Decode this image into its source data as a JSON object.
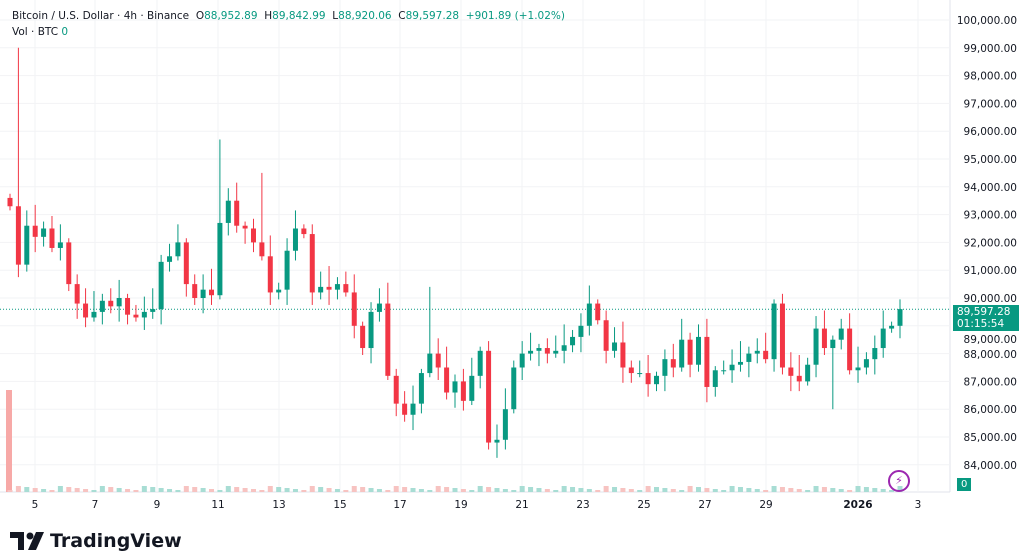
{
  "header": {
    "symbol": "Bitcoin / U.S. Dollar · 4h · Binance",
    "o_label": "O",
    "o": "88,952.89",
    "h_label": "H",
    "h": "89,842.99",
    "l_label": "L",
    "l": "88,920.06",
    "c_label": "C",
    "c": "89,597.28",
    "change": "+901.89 (+1.02%)",
    "vol_label": "Vol · BTC",
    "vol": "0"
  },
  "price_badge": {
    "price": "89,597.28",
    "countdown": "01:15:54"
  },
  "vol_badge": "0",
  "logo": "TradingView",
  "colors": {
    "up": "#089981",
    "down": "#f23645"
  },
  "chart_data": {
    "type": "candlestick",
    "ylim": [
      83000,
      100500
    ],
    "yticks": [
      "100,000.00",
      "99,000.00",
      "98,000.00",
      "97,000.00",
      "96,000.00",
      "95,000.00",
      "94,000.00",
      "93,000.00",
      "92,000.00",
      "91,000.00",
      "90,000.00",
      "89,000.00",
      "88,000.00",
      "87,000.00",
      "86,000.00",
      "85,000.00",
      "84,000.00"
    ],
    "xticks": [
      "5",
      "7",
      "9",
      "11",
      "13",
      "15",
      "17",
      "19",
      "21",
      "23",
      "25",
      "27",
      "29",
      "2026",
      "3"
    ],
    "closes": [
      93.3,
      91.2,
      92.6,
      92.2,
      92.5,
      91.8,
      92.0,
      90.5,
      89.8,
      89.3,
      89.5,
      89.9,
      89.7,
      90.0,
      89.4,
      89.3,
      89.5,
      89.6,
      91.3,
      91.5,
      92.0,
      90.5,
      90.0,
      90.3,
      90.1,
      92.7,
      93.5,
      92.6,
      92.5,
      92.0,
      91.5,
      90.2,
      90.3,
      91.7,
      92.5,
      92.3,
      90.2,
      90.4,
      90.3,
      90.5,
      90.2,
      89.0,
      88.2,
      89.5,
      89.8,
      87.2,
      86.2,
      85.8,
      86.2,
      87.3,
      88.0,
      87.5,
      86.6,
      87.0,
      86.3,
      87.2,
      88.1,
      84.8,
      84.9,
      86.0,
      87.5,
      88.0,
      88.1,
      88.2,
      88.0,
      88.1,
      88.3,
      88.6,
      89.0,
      89.8,
      89.2,
      88.1,
      88.4,
      87.5,
      87.3,
      87.3,
      86.9,
      87.2,
      87.8,
      87.5,
      88.5,
      87.6,
      88.6,
      86.8,
      87.4,
      87.4,
      87.6,
      87.7,
      88.0,
      88.1,
      87.8,
      89.8,
      87.5,
      87.2,
      87.0,
      87.6,
      88.9,
      88.2,
      88.5,
      88.9,
      87.4,
      87.5,
      87.8,
      88.2,
      88.9,
      89.0,
      89.6
    ]
  }
}
